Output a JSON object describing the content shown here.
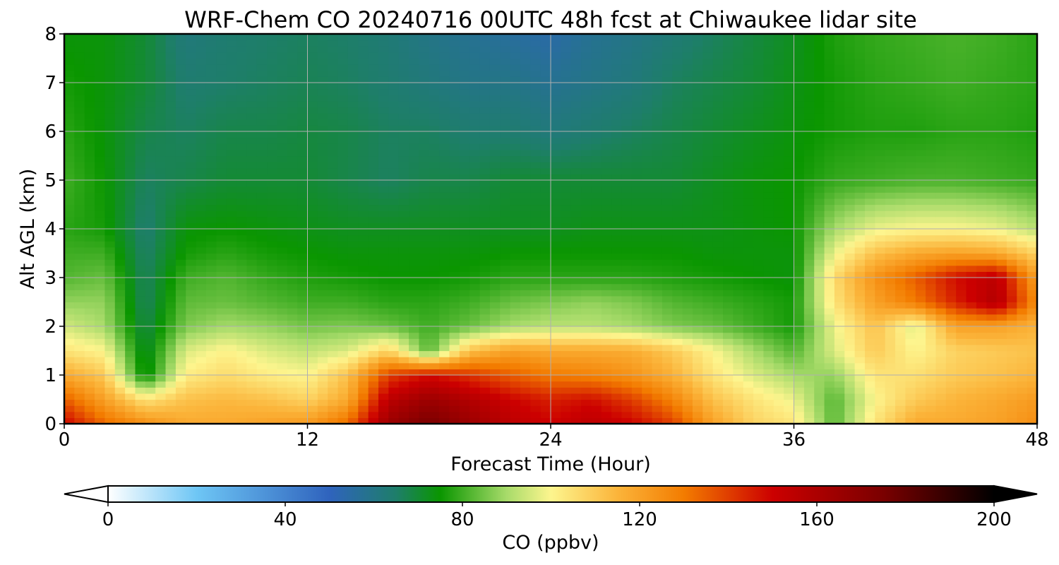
{
  "chart_data": {
    "type": "heatmap",
    "title": "WRF-Chem CO  20240716 00UTC 48h fcst at Chiwaukee lidar site",
    "xlabel": "Forecast Time (Hour)",
    "ylabel": "Alt AGL (km)",
    "xlim": [
      0,
      48
    ],
    "ylim": [
      0,
      8
    ],
    "xticks": [
      0,
      12,
      24,
      36,
      48
    ],
    "yticks": [
      0,
      1,
      2,
      3,
      4,
      5,
      6,
      7,
      8
    ],
    "grid": true,
    "colorbar": {
      "label": "CO  (ppbv)",
      "range": [
        0,
        200
      ],
      "ticks": [
        0,
        40,
        80,
        120,
        160,
        200
      ],
      "extend": "both",
      "stops": [
        {
          "v": 0,
          "c": "#ffffff"
        },
        {
          "v": 20,
          "c": "#6ec6f5"
        },
        {
          "v": 50,
          "c": "#2f63bd"
        },
        {
          "v": 65,
          "c": "#1e7e6a"
        },
        {
          "v": 75,
          "c": "#0a9600"
        },
        {
          "v": 90,
          "c": "#a8db6a"
        },
        {
          "v": 100,
          "c": "#fdf58e"
        },
        {
          "v": 115,
          "c": "#fbb43a"
        },
        {
          "v": 130,
          "c": "#f37c00"
        },
        {
          "v": 150,
          "c": "#cc0000"
        },
        {
          "v": 175,
          "c": "#7a0000"
        },
        {
          "v": 200,
          "c": "#000000"
        }
      ]
    },
    "hours": [
      0,
      2,
      4,
      6,
      8,
      10,
      12,
      14,
      16,
      18,
      20,
      22,
      24,
      26,
      28,
      30,
      32,
      34,
      36,
      38,
      40,
      42,
      44,
      46,
      48
    ],
    "altitudes_km": [
      0,
      0.5,
      1,
      1.5,
      2,
      2.5,
      3,
      3.5,
      4,
      5,
      6,
      7,
      8
    ],
    "co_ppbv": [
      [
        150,
        133,
        125,
        118,
        118,
        120,
        122,
        133,
        165,
        175,
        165,
        155,
        150,
        155,
        150,
        140,
        120,
        108,
        104,
        82,
        104,
        118,
        118,
        120,
        125
      ],
      [
        135,
        120,
        104,
        112,
        114,
        112,
        108,
        118,
        155,
        165,
        158,
        150,
        145,
        148,
        140,
        128,
        112,
        104,
        98,
        82,
        100,
        110,
        115,
        118,
        122
      ],
      [
        118,
        110,
        72,
        102,
        106,
        102,
        100,
        112,
        140,
        148,
        142,
        135,
        130,
        128,
        124,
        116,
        104,
        96,
        90,
        88,
        104,
        105,
        110,
        112,
        115
      ],
      [
        104,
        100,
        70,
        96,
        101,
        96,
        93,
        96,
        108,
        82,
        112,
        120,
        118,
        118,
        117,
        110,
        100,
        90,
        82,
        96,
        110,
        100,
        108,
        110,
        112
      ],
      [
        95,
        90,
        68,
        86,
        90,
        88,
        85,
        86,
        84,
        80,
        84,
        90,
        92,
        92,
        90,
        86,
        84,
        80,
        76,
        98,
        112,
        96,
        120,
        120,
        115
      ],
      [
        88,
        88,
        66,
        83,
        84,
        82,
        80,
        80,
        78,
        78,
        80,
        84,
        86,
        88,
        86,
        82,
        80,
        78,
        76,
        104,
        120,
        130,
        145,
        158,
        125
      ],
      [
        82,
        84,
        66,
        80,
        82,
        79,
        77,
        76,
        75,
        75,
        76,
        78,
        78,
        78,
        78,
        77,
        76,
        75,
        74,
        106,
        124,
        135,
        148,
        155,
        120
      ],
      [
        80,
        80,
        65,
        76,
        78,
        76,
        75,
        74,
        74,
        74,
        74,
        75,
        75,
        75,
        75,
        75,
        74,
        74,
        74,
        98,
        112,
        118,
        120,
        118,
        108
      ],
      [
        78,
        76,
        64,
        74,
        75,
        74,
        73,
        72,
        72,
        72,
        72,
        72,
        72,
        73,
        73,
        73,
        73,
        74,
        75,
        90,
        98,
        100,
        100,
        98,
        92
      ],
      [
        80,
        75,
        66,
        68,
        70,
        70,
        70,
        68,
        66,
        68,
        68,
        70,
        70,
        70,
        70,
        70,
        72,
        74,
        75,
        79,
        80,
        81,
        81,
        80,
        79
      ],
      [
        78,
        74,
        68,
        66,
        68,
        68,
        69,
        68,
        66,
        66,
        64,
        64,
        62,
        64,
        66,
        68,
        70,
        72,
        74,
        76,
        77,
        77,
        78,
        78,
        77
      ],
      [
        76,
        74,
        70,
        64,
        65,
        66,
        67,
        66,
        64,
        62,
        60,
        60,
        58,
        60,
        62,
        66,
        68,
        70,
        73,
        76,
        78,
        79,
        80,
        79,
        78
      ],
      [
        74,
        74,
        70,
        62,
        64,
        65,
        66,
        65,
        63,
        60,
        58,
        56,
        54,
        58,
        60,
        63,
        66,
        69,
        72,
        77,
        79,
        80,
        81,
        80,
        78
      ]
    ]
  }
}
